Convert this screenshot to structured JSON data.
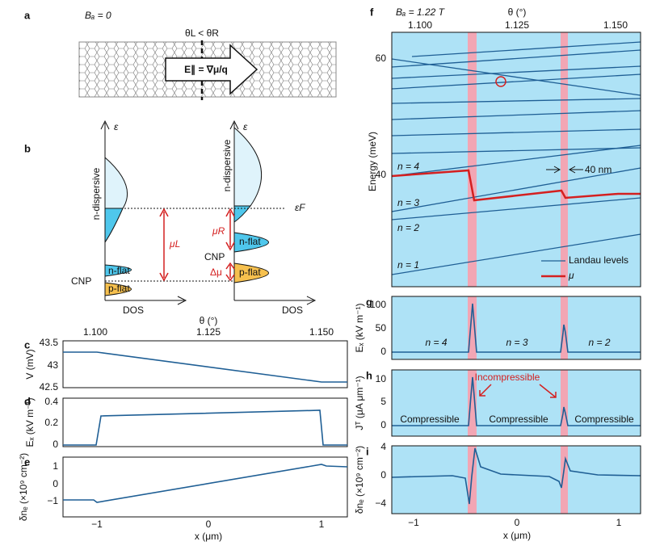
{
  "panels": {
    "a": {
      "label": "a",
      "field": "Bₐ = 0",
      "twist": "θL < θR",
      "arrow": "E∥ = ∇μ/q"
    },
    "b": {
      "label": "b",
      "energy": "ε",
      "dos_left": "DOS",
      "dos_right": "DOS",
      "n_disp_left": "n-dispersive",
      "n_disp_right": "n-dispersive",
      "n_flat_left": "n-flat",
      "p_flat_left": "p-flat",
      "n_flat_right": "n-flat",
      "p_flat_right": "p-flat",
      "cnp_left": "CNP",
      "cnp_right": "CNP",
      "mu_l": "μL",
      "mu_r": "μR",
      "dmu": "Δμ",
      "ef": "εF",
      "energy_right": "ε"
    },
    "c": {
      "label": "c",
      "top_axis": "θ (°)",
      "top_ticks": [
        "1.100",
        "1.125",
        "1.150"
      ],
      "ylabel": "V (mV)",
      "yticks": [
        "43.5",
        "43",
        "42.5"
      ]
    },
    "d": {
      "label": "d",
      "ylabel": "Eₓ (kV m⁻¹)",
      "yticks": [
        "0.4",
        "0.2",
        "0"
      ]
    },
    "e": {
      "label": "e",
      "ylabel": "δnₑ (×10⁹ cm⁻²)",
      "yticks": [
        "1",
        "0",
        "−1"
      ],
      "xticks": [
        "−1",
        "0",
        "1"
      ],
      "xlabel": "x (μm)"
    },
    "f": {
      "label": "f",
      "field": "Bₐ = 1.22 T",
      "top_axis": "θ (°)",
      "top_ticks": [
        "1.100",
        "1.125",
        "1.150"
      ],
      "ylabel": "Energy (meV)",
      "yticks": [
        "60",
        "40"
      ],
      "levels": [
        "n = 4",
        "n = 3",
        "n = 2",
        "n = 1"
      ],
      "width": "40 nm",
      "legend": [
        "Landau levels",
        "μ"
      ]
    },
    "g": {
      "label": "g",
      "ylabel": "Eₓ (kV m⁻¹)",
      "yticks": [
        "100",
        "50",
        "0"
      ],
      "levels": [
        "n = 4",
        "n = 3",
        "n = 2"
      ]
    },
    "h": {
      "label": "h",
      "ylabel": "Jᵀ (μA μm⁻¹)",
      "yticks": [
        "10",
        "5",
        "0"
      ],
      "incompressible": "Incompressible",
      "compressible": [
        "Compressible",
        "Compressible",
        "Compressible"
      ]
    },
    "i": {
      "label": "i",
      "ylabel": "δnₑ (×10⁹ cm⁻²)",
      "yticks": [
        "4",
        "0",
        "−4"
      ],
      "xticks": [
        "−1",
        "0",
        "1"
      ],
      "xlabel": "x (μm)"
    }
  }
}
